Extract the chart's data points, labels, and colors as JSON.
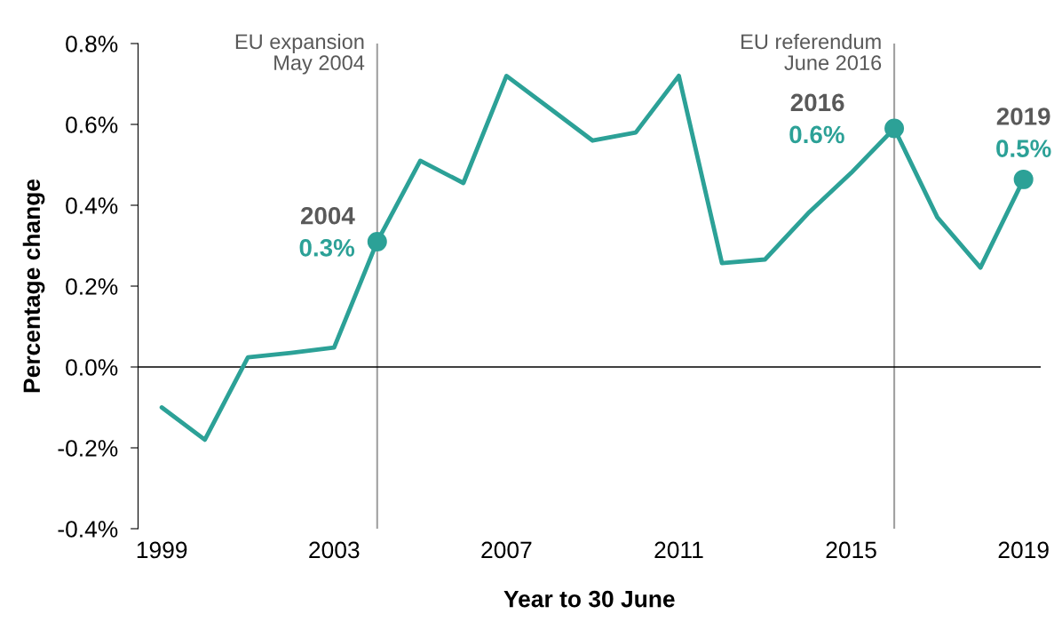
{
  "chart_data": {
    "type": "line",
    "xlabel": "Year to 30 June",
    "ylabel": "Percentage change",
    "x": [
      1999,
      2000,
      2001,
      2002,
      2003,
      2004,
      2005,
      2006,
      2007,
      2008,
      2009,
      2010,
      2011,
      2012,
      2013,
      2014,
      2015,
      2016,
      2017,
      2018,
      2019
    ],
    "series": [
      {
        "color": "#2ca197",
        "values": [
          -0.1,
          -0.18,
          0.024,
          0.035,
          0.048,
          0.31,
          0.51,
          0.455,
          0.72,
          0.64,
          0.56,
          0.58,
          0.72,
          0.257,
          0.266,
          0.38,
          0.48,
          0.59,
          0.37,
          0.246,
          0.464
        ]
      },
      {
        "type": "scatter",
        "color": "#2ca197",
        "x": [
          2004,
          2016,
          2019
        ],
        "values": [
          0.31,
          0.59,
          0.464
        ]
      }
    ],
    "xlim": [
      1998.45,
      2019.4
    ],
    "xticks": [
      1999,
      2003,
      2007,
      2011,
      2015,
      2019
    ],
    "ylim": [
      -0.4,
      0.8
    ],
    "yticks": [
      {
        "value": -0.4,
        "label": "-0.4%"
      },
      {
        "value": -0.2,
        "label": "-0.2%"
      },
      {
        "value": 0.0,
        "label": "0.0%"
      },
      {
        "value": 0.2,
        "label": "0.2%"
      },
      {
        "value": 0.4,
        "label": "0.4%"
      },
      {
        "value": 0.6,
        "label": "0.6%"
      },
      {
        "value": 0.8,
        "label": "0.8%"
      }
    ],
    "ref_lines": [
      {
        "axis": "y",
        "value": 0,
        "color": "#000000"
      },
      {
        "axis": "x",
        "value": 2004,
        "label": "EU expansion\nMay 2004",
        "color": "#a0a0a0"
      },
      {
        "axis": "x",
        "value": 2016,
        "label": "EU referendum\nJune 2016",
        "color": "#a0a0a0"
      }
    ],
    "annotations": [
      {
        "text": "2004",
        "x": 2004,
        "y": 0.31
      },
      {
        "text": "0.3%",
        "x": 2004,
        "y": 0.31
      },
      {
        "text": "2016",
        "x": 2016,
        "y": 0.59
      },
      {
        "text": "0.6%",
        "x": 2016,
        "y": 0.59
      },
      {
        "text": "2019",
        "x": 2019,
        "y": 0.464
      },
      {
        "text": "0.5%",
        "x": 2019,
        "y": 0.464
      }
    ],
    "grid": false
  }
}
